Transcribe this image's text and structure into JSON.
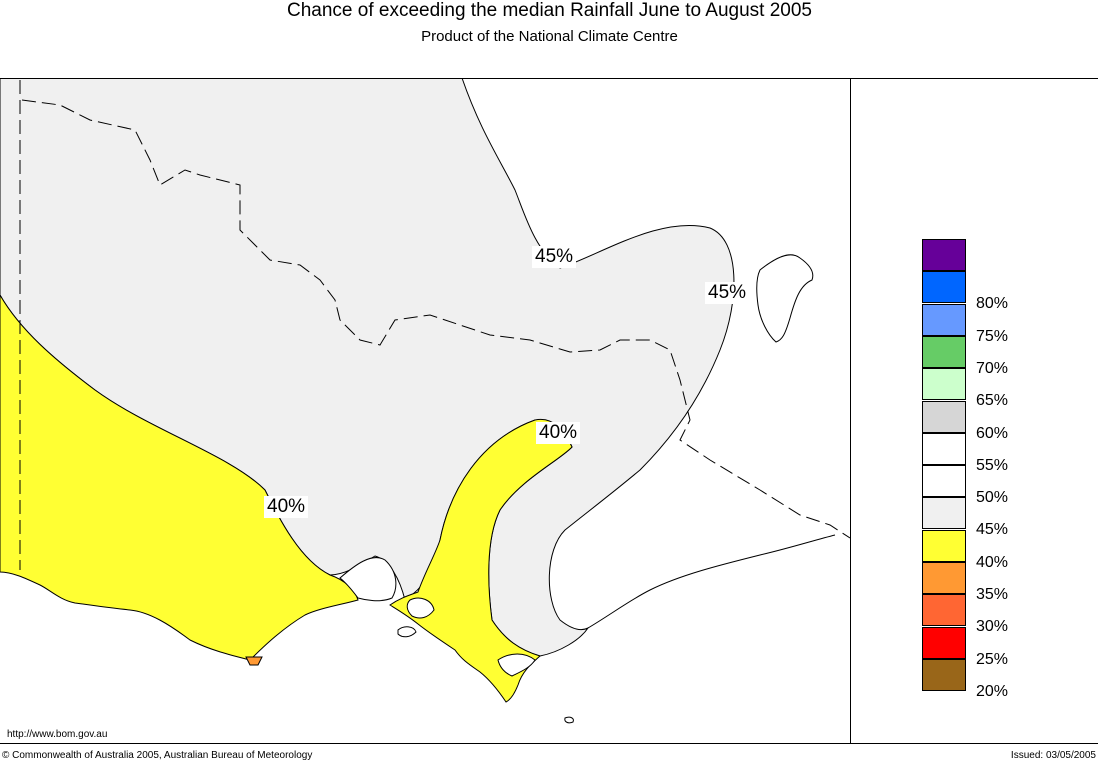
{
  "title": "Chance of exceeding the median Rainfall June to August 2005",
  "subtitle": "Product of the National Climate Centre",
  "footer": {
    "url": "http://www.bom.gov.au",
    "copyright": "© Commonwealth of Australia 2005, Australian Bureau of Meteorology",
    "issued": "Issued: 03/05/2005"
  },
  "colors": {
    "zone_40_45": "#f0f0f0",
    "zone_35_40": "#ffff33",
    "zone_45_50": "#ffffff",
    "zone_30_35": "#ff9933"
  },
  "legend": [
    {
      "color": "#660099",
      "label": ""
    },
    {
      "color": "#0066ff",
      "label": "80%"
    },
    {
      "color": "#6699ff",
      "label": "75%"
    },
    {
      "color": "#66cc66",
      "label": "70%"
    },
    {
      "color": "#ccffcc",
      "label": "65%"
    },
    {
      "color": "#d6d6d6",
      "label": "60%"
    },
    {
      "color": "#ffffff",
      "label": "55%"
    },
    {
      "color": "#ffffff",
      "label": "50%"
    },
    {
      "color": "#f0f0f0",
      "label": "45%"
    },
    {
      "color": "#ffff33",
      "label": "40%"
    },
    {
      "color": "#ff9933",
      "label": "35%"
    },
    {
      "color": "#ff6633",
      "label": "30%"
    },
    {
      "color": "#ff0000",
      "label": "25%"
    },
    {
      "color": "#996619",
      "label": "20%"
    }
  ],
  "contour_labels": [
    "45%",
    "45%",
    "40%",
    "40%"
  ]
}
